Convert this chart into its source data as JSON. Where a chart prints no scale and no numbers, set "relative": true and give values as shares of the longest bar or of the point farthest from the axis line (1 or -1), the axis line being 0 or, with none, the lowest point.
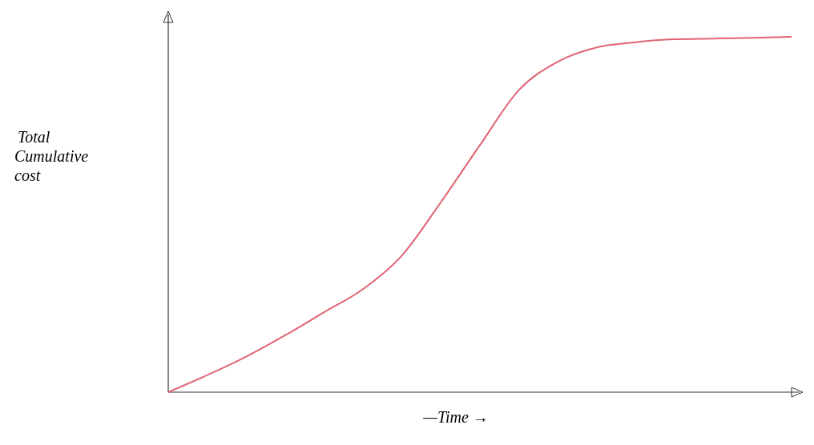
{
  "chart_data": {
    "type": "line",
    "relative": true,
    "xlabel": "—Time →",
    "ylabel": "Total Cumulative cost",
    "categories": [
      null,
      null,
      null,
      null,
      null,
      null,
      null,
      null,
      null,
      null,
      null,
      null,
      null,
      null,
      null,
      null,
      null
    ],
    "series": [
      {
        "color": "#e06474",
        "values": [
          0,
          0.048,
          0.1,
          0.16,
          0.225,
          0.29,
          0.385,
          0.535,
          0.695,
          0.85,
          0.93,
          0.97,
          0.985,
          0.993,
          0.995,
          0.997,
          1
        ]
      }
    ]
  }
}
